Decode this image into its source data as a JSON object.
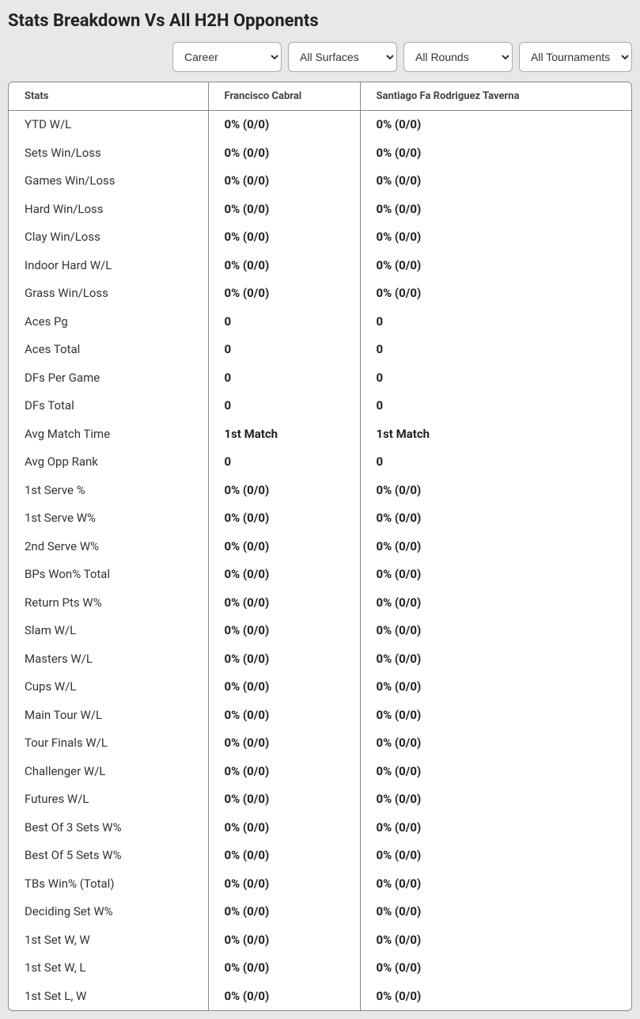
{
  "title": "Stats Breakdown Vs All H2H Opponents",
  "filters": {
    "timeframe": {
      "selected": "Career",
      "options": [
        "Career"
      ]
    },
    "surface": {
      "selected": "All Surfaces",
      "options": [
        "All Surfaces"
      ]
    },
    "round": {
      "selected": "All Rounds",
      "options": [
        "All Rounds"
      ]
    },
    "tournament": {
      "selected": "All Tournaments",
      "options": [
        "All Tournaments"
      ]
    }
  },
  "columns": {
    "stats": "Stats",
    "player1": "Francisco Cabral",
    "player2": "Santiago Fa Rodriguez Taverna"
  },
  "rows": [
    {
      "label": "YTD W/L",
      "p1": "0% (0/0)",
      "p2": "0% (0/0)"
    },
    {
      "label": "Sets Win/Loss",
      "p1": "0% (0/0)",
      "p2": "0% (0/0)"
    },
    {
      "label": "Games Win/Loss",
      "p1": "0% (0/0)",
      "p2": "0% (0/0)"
    },
    {
      "label": "Hard Win/Loss",
      "p1": "0% (0/0)",
      "p2": "0% (0/0)"
    },
    {
      "label": "Clay Win/Loss",
      "p1": "0% (0/0)",
      "p2": "0% (0/0)"
    },
    {
      "label": "Indoor Hard W/L",
      "p1": "0% (0/0)",
      "p2": "0% (0/0)"
    },
    {
      "label": "Grass Win/Loss",
      "p1": "0% (0/0)",
      "p2": "0% (0/0)"
    },
    {
      "label": "Aces Pg",
      "p1": "0",
      "p2": "0"
    },
    {
      "label": "Aces Total",
      "p1": "0",
      "p2": "0"
    },
    {
      "label": "DFs Per Game",
      "p1": "0",
      "p2": "0"
    },
    {
      "label": "DFs Total",
      "p1": "0",
      "p2": "0"
    },
    {
      "label": "Avg Match Time",
      "p1": "1st Match",
      "p2": "1st Match"
    },
    {
      "label": "Avg Opp Rank",
      "p1": "0",
      "p2": "0"
    },
    {
      "label": "1st Serve %",
      "p1": "0% (0/0)",
      "p2": "0% (0/0)"
    },
    {
      "label": "1st Serve W%",
      "p1": "0% (0/0)",
      "p2": "0% (0/0)"
    },
    {
      "label": "2nd Serve W%",
      "p1": "0% (0/0)",
      "p2": "0% (0/0)"
    },
    {
      "label": "BPs Won% Total",
      "p1": "0% (0/0)",
      "p2": "0% (0/0)"
    },
    {
      "label": "Return Pts W%",
      "p1": "0% (0/0)",
      "p2": "0% (0/0)"
    },
    {
      "label": "Slam W/L",
      "p1": "0% (0/0)",
      "p2": "0% (0/0)"
    },
    {
      "label": "Masters W/L",
      "p1": "0% (0/0)",
      "p2": "0% (0/0)"
    },
    {
      "label": "Cups W/L",
      "p1": "0% (0/0)",
      "p2": "0% (0/0)"
    },
    {
      "label": "Main Tour W/L",
      "p1": "0% (0/0)",
      "p2": "0% (0/0)"
    },
    {
      "label": "Tour Finals W/L",
      "p1": "0% (0/0)",
      "p2": "0% (0/0)"
    },
    {
      "label": "Challenger W/L",
      "p1": "0% (0/0)",
      "p2": "0% (0/0)"
    },
    {
      "label": "Futures W/L",
      "p1": "0% (0/0)",
      "p2": "0% (0/0)"
    },
    {
      "label": "Best Of 3 Sets W%",
      "p1": "0% (0/0)",
      "p2": "0% (0/0)"
    },
    {
      "label": "Best Of 5 Sets W%",
      "p1": "0% (0/0)",
      "p2": "0% (0/0)"
    },
    {
      "label": "TBs Win% (Total)",
      "p1": "0% (0/0)",
      "p2": "0% (0/0)"
    },
    {
      "label": "Deciding Set W%",
      "p1": "0% (0/0)",
      "p2": "0% (0/0)"
    },
    {
      "label": "1st Set W, W",
      "p1": "0% (0/0)",
      "p2": "0% (0/0)"
    },
    {
      "label": "1st Set W, L",
      "p1": "0% (0/0)",
      "p2": "0% (0/0)"
    },
    {
      "label": "1st Set L, W",
      "p1": "0% (0/0)",
      "p2": "0% (0/0)"
    }
  ],
  "colors": {
    "page_bg": "#e8e8e8",
    "panel_bg": "#ffffff",
    "border": "#888888",
    "text": "#333333"
  }
}
